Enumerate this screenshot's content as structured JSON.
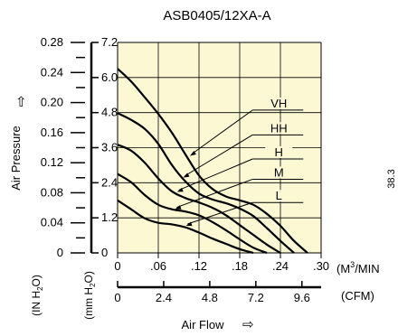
{
  "chart_data": {
    "type": "line",
    "title": "ASB0405/12XA-A",
    "plot_background": "#fcf8d4",
    "line_color": "#000000",
    "grid": true,
    "x_axis": {
      "unit": "(M3/MIN)",
      "unit_base": "(M",
      "unit_sup": "3",
      "unit_tail": "/MIN",
      "range": [
        0,
        0.3
      ],
      "ticks": [
        0,
        0.06,
        0.12,
        0.18,
        0.24,
        0.3
      ],
      "tick_labels": [
        "0",
        ".06",
        ".12",
        ".18",
        ".24",
        ".30"
      ]
    },
    "x_axis_cfm": {
      "unit": "(CFM)",
      "range": [
        0,
        10.6
      ],
      "ticks": [
        0,
        2.4,
        4.8,
        7.2,
        9.6
      ],
      "tick_labels": [
        "0",
        "2.4",
        "4.8",
        "7.2",
        "9.6"
      ]
    },
    "xlabel": "Air Flow",
    "xlabel_arrow": "⇨",
    "ylabel": "Air Pressure",
    "ylabel_arrow": "⇨",
    "y_axis_inh2o": {
      "unit": "(IN H2O)",
      "unit_base": "(IN H",
      "unit_sub": "2",
      "unit_tail": "O)",
      "range": [
        0,
        0.28
      ],
      "ticks": [
        0,
        0.04,
        0.08,
        0.12,
        0.16,
        0.2,
        0.24,
        0.28
      ],
      "tick_labels": [
        "0",
        "0.04",
        "0.08",
        "0.12",
        "0.16",
        "0.20",
        "0.24",
        "0.28"
      ]
    },
    "y_axis_mmh2o": {
      "unit": "(mm H2O)",
      "unit_base": "(mm H",
      "unit_sub": "2",
      "unit_tail": "O)",
      "range": [
        0,
        7.2
      ],
      "ticks": [
        0,
        1.2,
        2.4,
        3.6,
        4.8,
        6.0,
        7.2
      ],
      "tick_labels": [
        "0",
        "1.2",
        "2.4",
        "3.6",
        "4.8",
        "6.0",
        "7.2"
      ]
    },
    "side_text": "38.3",
    "series": [
      {
        "name": "VH",
        "x": [
          0,
          0.02,
          0.04,
          0.06,
          0.08,
          0.1,
          0.12,
          0.14,
          0.16,
          0.18,
          0.2,
          0.22,
          0.24,
          0.26,
          0.28
        ],
        "y": [
          0.245,
          0.228,
          0.207,
          0.185,
          0.16,
          0.131,
          0.103,
          0.085,
          0.075,
          0.07,
          0.064,
          0.052,
          0.036,
          0.016,
          0
        ]
      },
      {
        "name": "HH",
        "x": [
          0,
          0.02,
          0.04,
          0.06,
          0.08,
          0.1,
          0.12,
          0.14,
          0.16,
          0.18,
          0.2,
          0.22,
          0.24,
          0.26
        ],
        "y": [
          0.186,
          0.177,
          0.165,
          0.145,
          0.117,
          0.095,
          0.079,
          0.071,
          0.066,
          0.059,
          0.049,
          0.033,
          0.016,
          0
        ]
      },
      {
        "name": "H",
        "x": [
          0,
          0.02,
          0.04,
          0.06,
          0.08,
          0.1,
          0.12,
          0.14,
          0.16,
          0.18,
          0.2,
          0.22,
          0.24
        ],
        "y": [
          0.144,
          0.136,
          0.12,
          0.099,
          0.082,
          0.073,
          0.067,
          0.06,
          0.05,
          0.037,
          0.024,
          0.011,
          0
        ]
      },
      {
        "name": "M",
        "x": [
          0,
          0.02,
          0.04,
          0.06,
          0.08,
          0.1,
          0.12,
          0.14,
          0.16,
          0.18,
          0.2,
          0.22
        ],
        "y": [
          0.105,
          0.094,
          0.077,
          0.064,
          0.058,
          0.055,
          0.05,
          0.041,
          0.03,
          0.018,
          0.007,
          0
        ]
      },
      {
        "name": "L",
        "x": [
          0,
          0.02,
          0.04,
          0.06,
          0.08,
          0.1,
          0.12,
          0.14,
          0.16,
          0.18,
          0.2
        ],
        "y": [
          0.07,
          0.058,
          0.046,
          0.04,
          0.038,
          0.034,
          0.027,
          0.019,
          0.012,
          0.005,
          0
        ]
      }
    ],
    "curve_labels": [
      {
        "series": "VH",
        "label_x": 0.215,
        "label_y": 0.19,
        "target_x": 0.104,
        "target_y": 0.128
      },
      {
        "series": "HH",
        "label_x": 0.215,
        "label_y": 0.157,
        "target_x": 0.094,
        "target_y": 0.099
      },
      {
        "series": "H",
        "label_x": 0.215,
        "label_y": 0.125,
        "target_x": 0.085,
        "target_y": 0.08
      },
      {
        "series": "M",
        "label_x": 0.215,
        "label_y": 0.098,
        "target_x": 0.082,
        "target_y": 0.057
      },
      {
        "series": "L",
        "label_x": 0.215,
        "label_y": 0.067,
        "target_x": 0.098,
        "target_y": 0.035
      }
    ]
  }
}
